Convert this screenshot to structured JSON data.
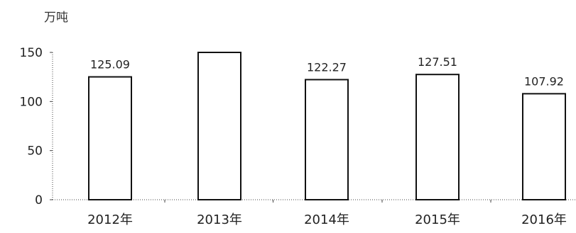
{
  "chart_data": {
    "type": "bar",
    "unit_label": "万吨",
    "categories": [
      "2012年",
      "2013年",
      "2014年",
      "2015年",
      "2016年"
    ],
    "values": [
      125.09,
      150,
      122.27,
      127.51,
      107.92
    ],
    "data_labels": [
      "125.09",
      "",
      "122.27",
      "127.51",
      "107.92"
    ],
    "y_ticks": [
      "0",
      "50",
      "100",
      "150"
    ],
    "ylim": [
      0,
      150
    ],
    "grid": false,
    "legend": "none",
    "title": "",
    "xlabel": "",
    "ylabel": "",
    "colors": {
      "bar_fill": "#ffffff",
      "bar_stroke": "#111111",
      "axis": "#444444",
      "text": "#222222"
    }
  }
}
